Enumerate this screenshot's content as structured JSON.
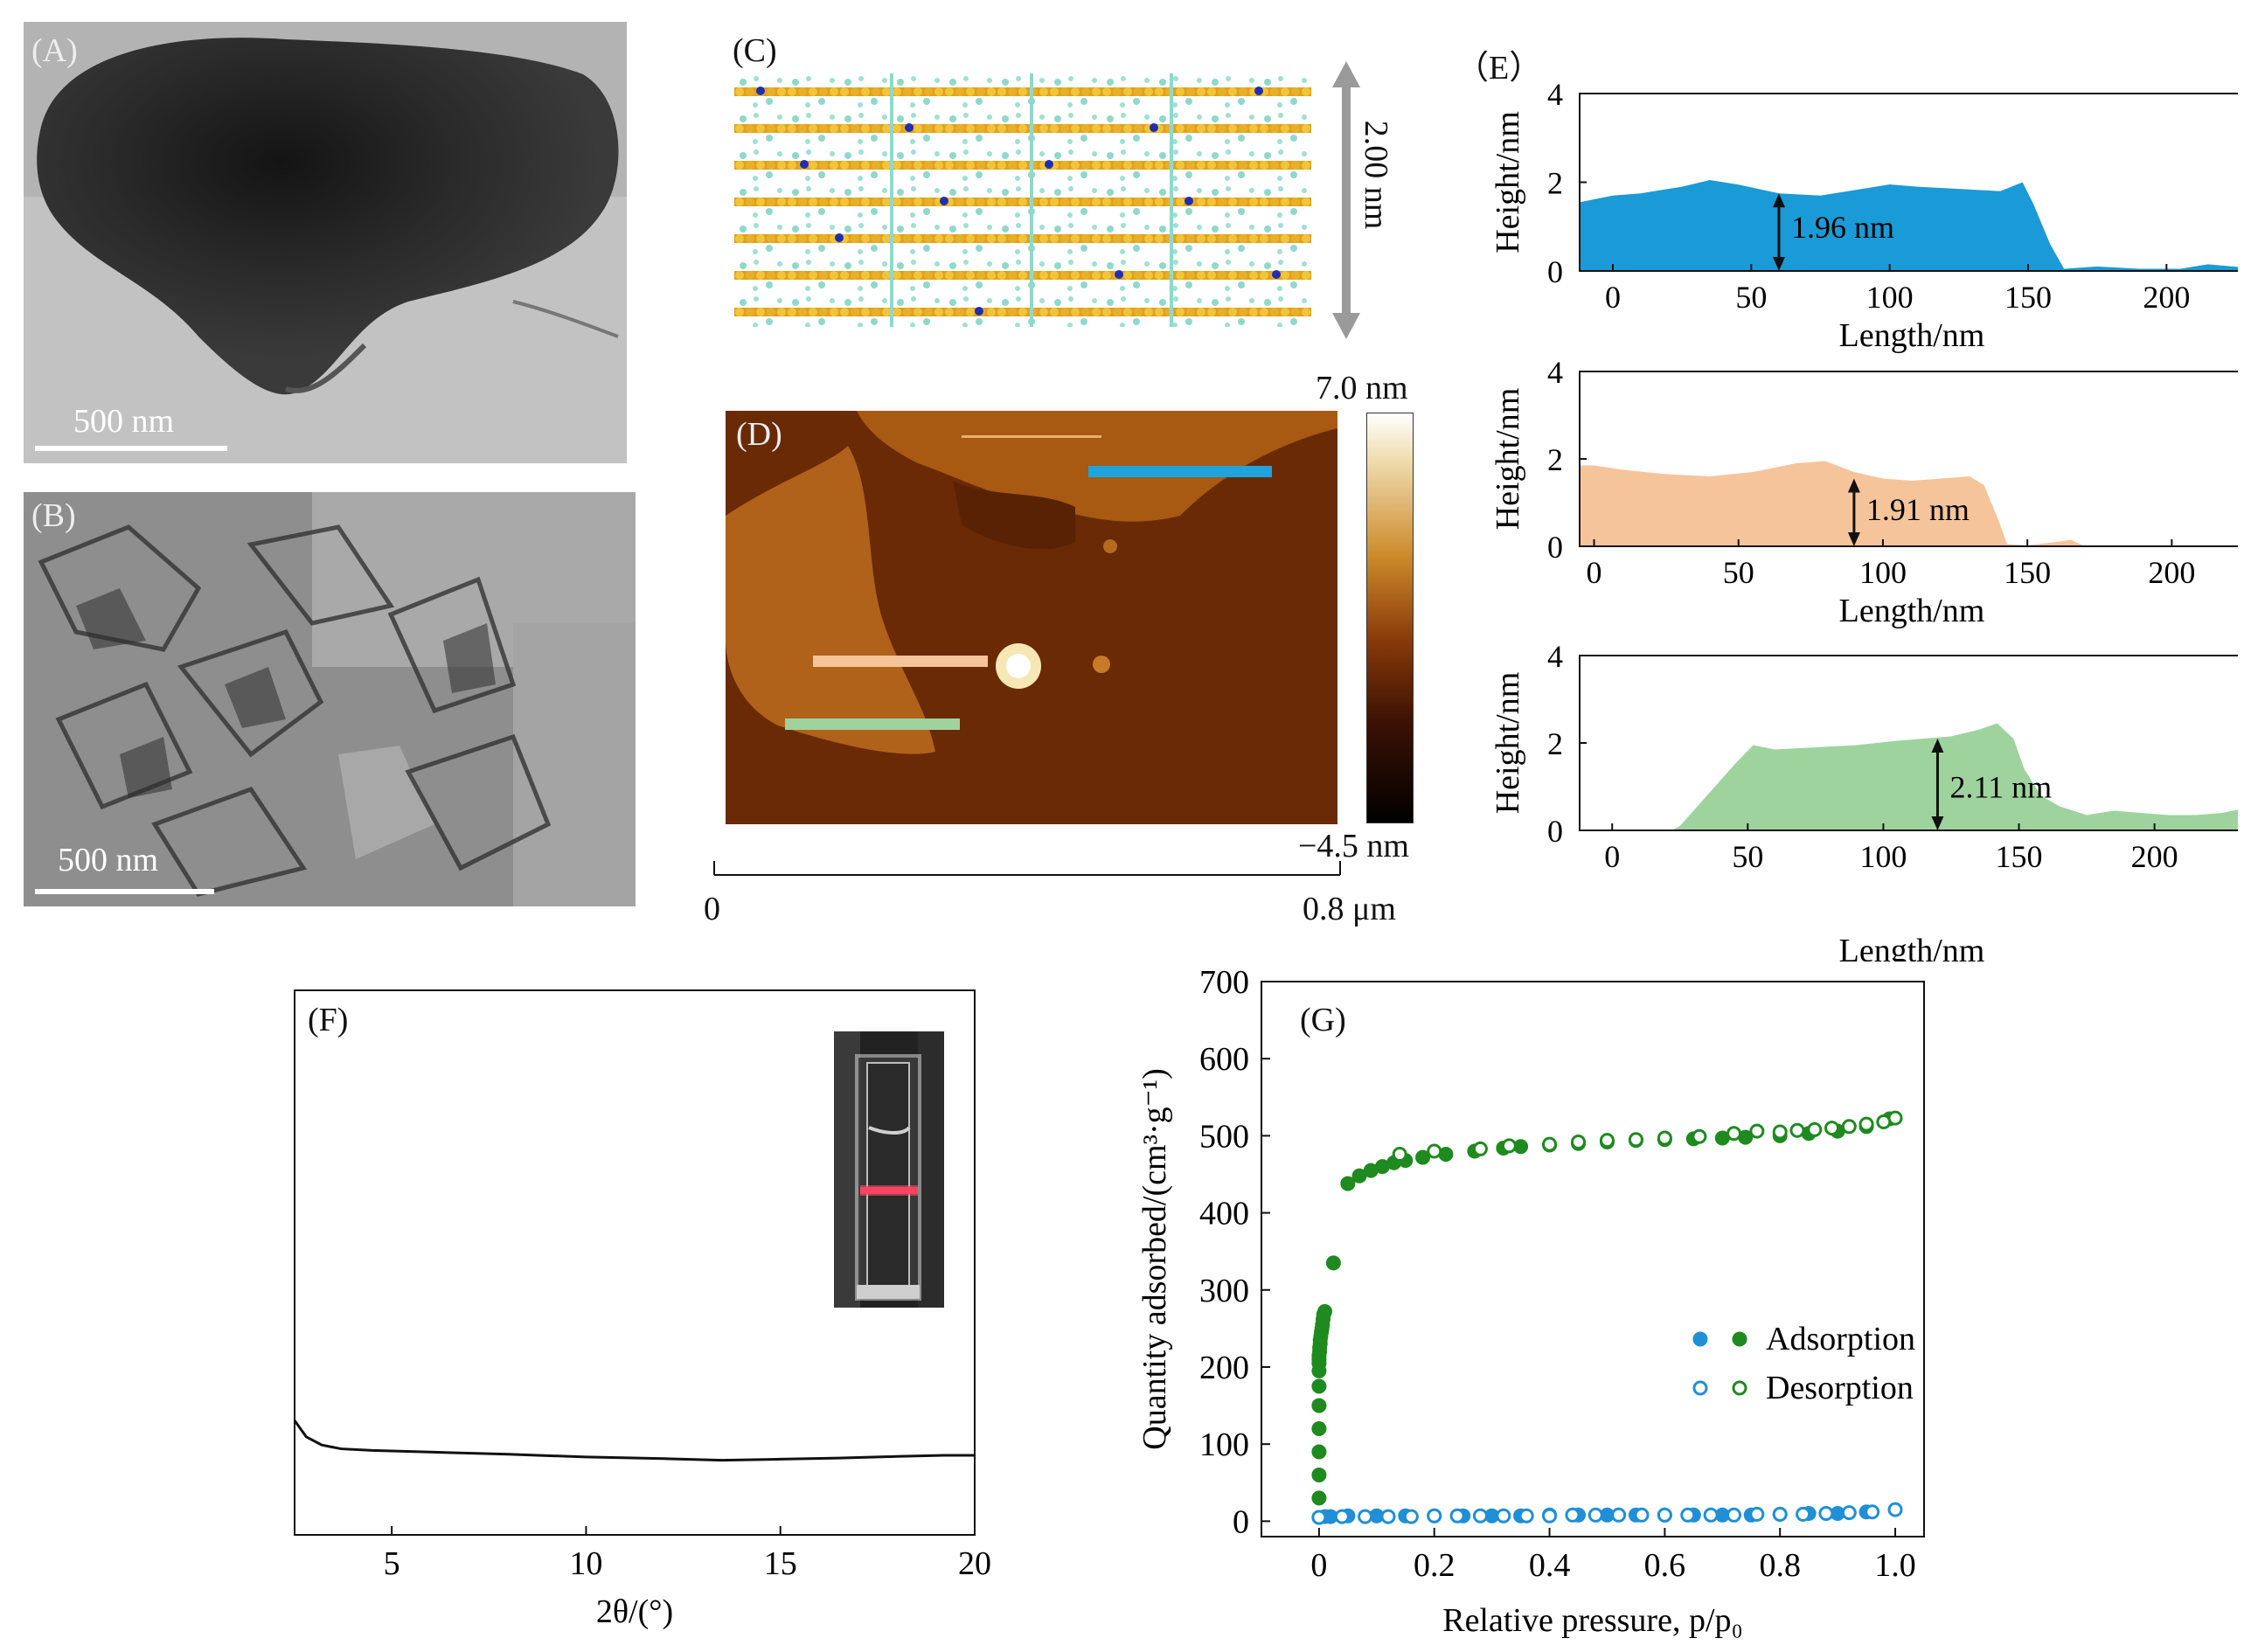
{
  "panels": {
    "A": {
      "label": "(A)",
      "scale_label": "500 nm"
    },
    "B": {
      "label": "(B)",
      "scale_label": "500 nm"
    },
    "C": {
      "label": "(C)",
      "dimension_label": "2.00 nm"
    },
    "D": {
      "label": "(D)",
      "colorbar_max": "7.0 nm",
      "colorbar_min": "−4.5 nm",
      "x_start": "0",
      "x_end": "0.8 μm"
    },
    "E": {
      "label": "（E）"
    },
    "F": {
      "label": "(F)"
    },
    "G": {
      "label": "(G)"
    }
  },
  "colors": {
    "blue": "#1a9ad6",
    "orange": "#f6c49a",
    "green": "#9ed39e",
    "dark_green": "#1f8a1f",
    "light_blue": "#1f8fd6"
  },
  "chart_data": [
    {
      "id": "E1",
      "type": "area",
      "xlabel": "Length/nm",
      "ylabel": "Height/nm",
      "xlim": [
        -12,
        228
      ],
      "ylim": [
        0,
        4
      ],
      "xticks": [
        "0",
        "50",
        "100",
        "150",
        "200"
      ],
      "yticks": [
        "0",
        "2",
        "4"
      ],
      "annotation": "1.96 nm",
      "color": "#1a9ad6",
      "x": [
        -12,
        0,
        10,
        25,
        35,
        45,
        60,
        75,
        90,
        100,
        110,
        125,
        140,
        148,
        152,
        158,
        163,
        175,
        190,
        205,
        215,
        228
      ],
      "y": [
        1.55,
        1.7,
        1.75,
        1.9,
        2.05,
        1.95,
        1.75,
        1.7,
        1.85,
        1.95,
        1.9,
        1.85,
        1.8,
        2.0,
        1.5,
        0.6,
        0.05,
        0.1,
        0.05,
        0.05,
        0.15,
        0.08
      ]
    },
    {
      "id": "E2",
      "type": "area",
      "xlabel": "Length/nm",
      "ylabel": "Height/nm",
      "xlim": [
        -5,
        225
      ],
      "ylim": [
        0,
        4
      ],
      "xticks": [
        "0",
        "50",
        "100",
        "150",
        "200"
      ],
      "yticks": [
        "0",
        "2",
        "4"
      ],
      "annotation": "1.91 nm",
      "color": "#f6c49a",
      "x": [
        -5,
        0,
        10,
        25,
        40,
        55,
        70,
        80,
        90,
        100,
        110,
        120,
        130,
        135,
        140,
        143,
        150,
        160,
        165,
        170,
        225
      ],
      "y": [
        1.85,
        1.85,
        1.75,
        1.65,
        1.6,
        1.7,
        1.9,
        1.95,
        1.7,
        1.55,
        1.5,
        1.55,
        1.6,
        1.4,
        0.6,
        0.05,
        0.02,
        0.1,
        0.15,
        0.0,
        0.0
      ]
    },
    {
      "id": "E3",
      "type": "area",
      "xlabel": "Length/nm",
      "ylabel": "Height/nm",
      "xlim": [
        -12,
        233
      ],
      "ylim": [
        0,
        4
      ],
      "xticks": [
        "0",
        "50",
        "100",
        "150",
        "200"
      ],
      "yticks": [
        "0",
        "2",
        "4"
      ],
      "annotation": "2.11 nm",
      "color": "#9ed39e",
      "x": [
        -12,
        22,
        25,
        35,
        45,
        52,
        60,
        75,
        90,
        105,
        115,
        125,
        135,
        142,
        148,
        152,
        158,
        165,
        175,
        185,
        195,
        205,
        215,
        225,
        233
      ],
      "y": [
        0,
        0,
        0.1,
        0.8,
        1.5,
        1.95,
        1.85,
        1.9,
        1.95,
        2.05,
        2.1,
        2.15,
        2.3,
        2.45,
        2.1,
        1.4,
        0.8,
        0.55,
        0.35,
        0.45,
        0.4,
        0.35,
        0.35,
        0.4,
        0.5
      ]
    },
    {
      "id": "F",
      "type": "line",
      "xlabel": "2θ/(°)",
      "ylabel": "",
      "xlim": [
        2.5,
        20
      ],
      "ylim": [
        0,
        1
      ],
      "xticks": [
        "5",
        "10",
        "15",
        "20"
      ],
      "x": [
        2.5,
        2.8,
        3.2,
        3.7,
        4.5,
        6,
        8,
        10,
        12,
        13.5,
        15,
        16.5,
        18,
        19.2,
        20
      ],
      "y": [
        0.21,
        0.18,
        0.165,
        0.158,
        0.155,
        0.152,
        0.148,
        0.143,
        0.14,
        0.137,
        0.139,
        0.141,
        0.144,
        0.146,
        0.146
      ]
    },
    {
      "id": "G",
      "type": "scatter",
      "xlabel": "Relative pressure, p/p₀",
      "ylabel": "Quantity adsorbed/(cm³·g⁻¹)",
      "xlim": [
        -0.1,
        1.05
      ],
      "ylim": [
        -20,
        700
      ],
      "xticks": [
        "0",
        "0.2",
        "0.4",
        "0.6",
        "0.8",
        "1.0"
      ],
      "yticks": [
        "0",
        "100",
        "200",
        "300",
        "400",
        "500",
        "600",
        "700"
      ],
      "legend": {
        "adsorption": "Adsorption",
        "desorption": "Desorption"
      },
      "series": [
        {
          "name": "Adsorption",
          "color": "#1f8a1f",
          "filled": true,
          "x": [
            0.0,
            0.0,
            0.0,
            0.0,
            0.0,
            0.0,
            0.0,
            0.0,
            0.0,
            0.0,
            0.001,
            0.001,
            0.002,
            0.002,
            0.003,
            0.004,
            0.005,
            0.006,
            0.007,
            0.008,
            0.01,
            0.025,
            0.05,
            0.07,
            0.09,
            0.11,
            0.13,
            0.15,
            0.18,
            0.22,
            0.27,
            0.32,
            0.35,
            0.4,
            0.45,
            0.5,
            0.55,
            0.6,
            0.65,
            0.7,
            0.74,
            0.8,
            0.85,
            0.9,
            0.95,
            0.99
          ],
          "y": [
            30,
            60,
            90,
            120,
            150,
            175,
            195,
            205,
            210,
            215,
            220,
            225,
            230,
            235,
            240,
            245,
            250,
            255,
            262,
            268,
            272,
            335,
            438,
            448,
            455,
            460,
            465,
            468,
            472,
            476,
            480,
            484,
            486,
            488,
            490,
            492,
            494,
            495,
            496,
            497,
            498,
            500,
            503,
            506,
            512,
            522
          ]
        },
        {
          "name": "Desorption",
          "color": "#1f8a1f",
          "filled": false,
          "x": [
            0.14,
            0.2,
            0.28,
            0.33,
            0.4,
            0.45,
            0.5,
            0.55,
            0.6,
            0.66,
            0.72,
            0.76,
            0.8,
            0.83,
            0.86,
            0.89,
            0.92,
            0.95,
            0.98,
            1.0
          ],
          "y": [
            476,
            480,
            483,
            487,
            489,
            492,
            494,
            495,
            497,
            499,
            503,
            506,
            505,
            507,
            508,
            510,
            512,
            515,
            518,
            523
          ]
        },
        {
          "name": "Adsorption",
          "color": "#1f8fd6",
          "filled": true,
          "x": [
            0.0,
            0.01,
            0.02,
            0.05,
            0.1,
            0.15,
            0.2,
            0.25,
            0.3,
            0.35,
            0.4,
            0.45,
            0.5,
            0.55,
            0.6,
            0.65,
            0.7,
            0.75,
            0.8,
            0.85,
            0.9,
            0.95
          ],
          "y": [
            5,
            6,
            6,
            7,
            7,
            7,
            7,
            7,
            7,
            7,
            8,
            8,
            8,
            8,
            8,
            8,
            8,
            8,
            9,
            10,
            10,
            12
          ]
        },
        {
          "name": "Desorption",
          "color": "#1f8fd6",
          "filled": false,
          "x": [
            0.0,
            0.04,
            0.08,
            0.12,
            0.16,
            0.2,
            0.24,
            0.28,
            0.32,
            0.36,
            0.4,
            0.44,
            0.48,
            0.52,
            0.56,
            0.6,
            0.64,
            0.68,
            0.72,
            0.76,
            0.8,
            0.84,
            0.88,
            0.92,
            0.96,
            1.0
          ],
          "y": [
            5,
            6,
            6,
            6,
            6,
            7,
            7,
            7,
            7,
            7,
            7,
            8,
            8,
            8,
            8,
            8,
            8,
            8,
            8,
            9,
            9,
            9,
            10,
            11,
            12,
            15
          ]
        }
      ]
    }
  ]
}
